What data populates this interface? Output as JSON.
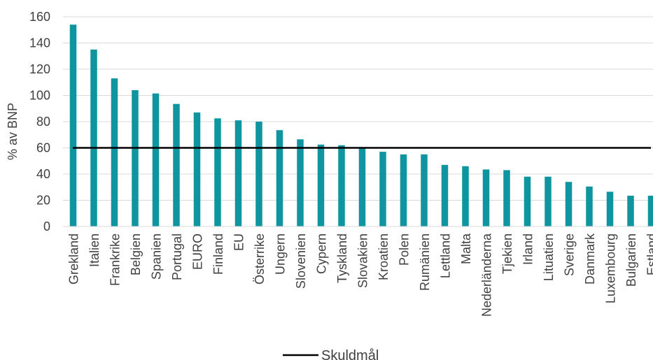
{
  "chart_data": {
    "type": "bar",
    "ylabel": "% av BNP",
    "ylim": [
      0,
      160
    ],
    "yticks": [
      0,
      20,
      40,
      60,
      80,
      100,
      120,
      140,
      160
    ],
    "grid": true,
    "legend_position": "bottom",
    "bar_color": "#0e95a0",
    "line_color": "#000000",
    "categories": [
      "Grekland",
      "Italien",
      "Frankrike",
      "Belgien",
      "Spanien",
      "Portugal",
      "EURO",
      "Finland",
      "EU",
      "Österrike",
      "Ungern",
      "Slovenien",
      "Cypern",
      "Tyskland",
      "Slovakien",
      "Kroatien",
      "Polen",
      "Rumänien",
      "Lettland",
      "Malta",
      "Nederländerna",
      "Tjekien",
      "Irland",
      "Lituatien",
      "Sverige",
      "Danmark",
      "Luxembourg",
      "Bulgarien",
      "Estland"
    ],
    "values": [
      154,
      135,
      113,
      104,
      101.5,
      93.5,
      87,
      82.5,
      81,
      80,
      73.5,
      66.5,
      62.5,
      62,
      60,
      57,
      55,
      55,
      47,
      46,
      43.5,
      43,
      38,
      38,
      34,
      30.5,
      26.5,
      23.5,
      23.5
    ],
    "reference_line": {
      "name": "Skuldmål",
      "value": 60
    }
  }
}
